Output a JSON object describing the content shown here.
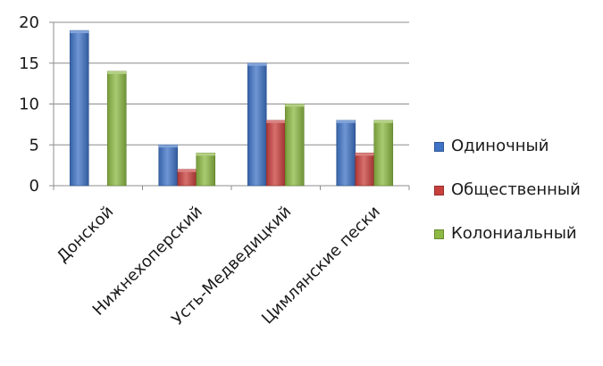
{
  "chart_data": {
    "type": "bar",
    "title": "",
    "xlabel": "",
    "ylabel": "",
    "ylim": [
      0,
      20
    ],
    "yticks": [
      0,
      5,
      10,
      15,
      20
    ],
    "grid": true,
    "legend_position": "right",
    "categories": [
      "Донской",
      "Нижнехоперский",
      "Усть-Медведицкий",
      "Цимлянские пески"
    ],
    "series": [
      {
        "name": "Одиночный",
        "color": "#3f73c6",
        "values": [
          19,
          5,
          15,
          8
        ]
      },
      {
        "name": "Общественный",
        "color": "#c8403d",
        "values": [
          0,
          2,
          8,
          4
        ]
      },
      {
        "name": "Колониальный",
        "color": "#8cb843",
        "values": [
          14,
          4,
          10,
          8
        ]
      }
    ]
  }
}
